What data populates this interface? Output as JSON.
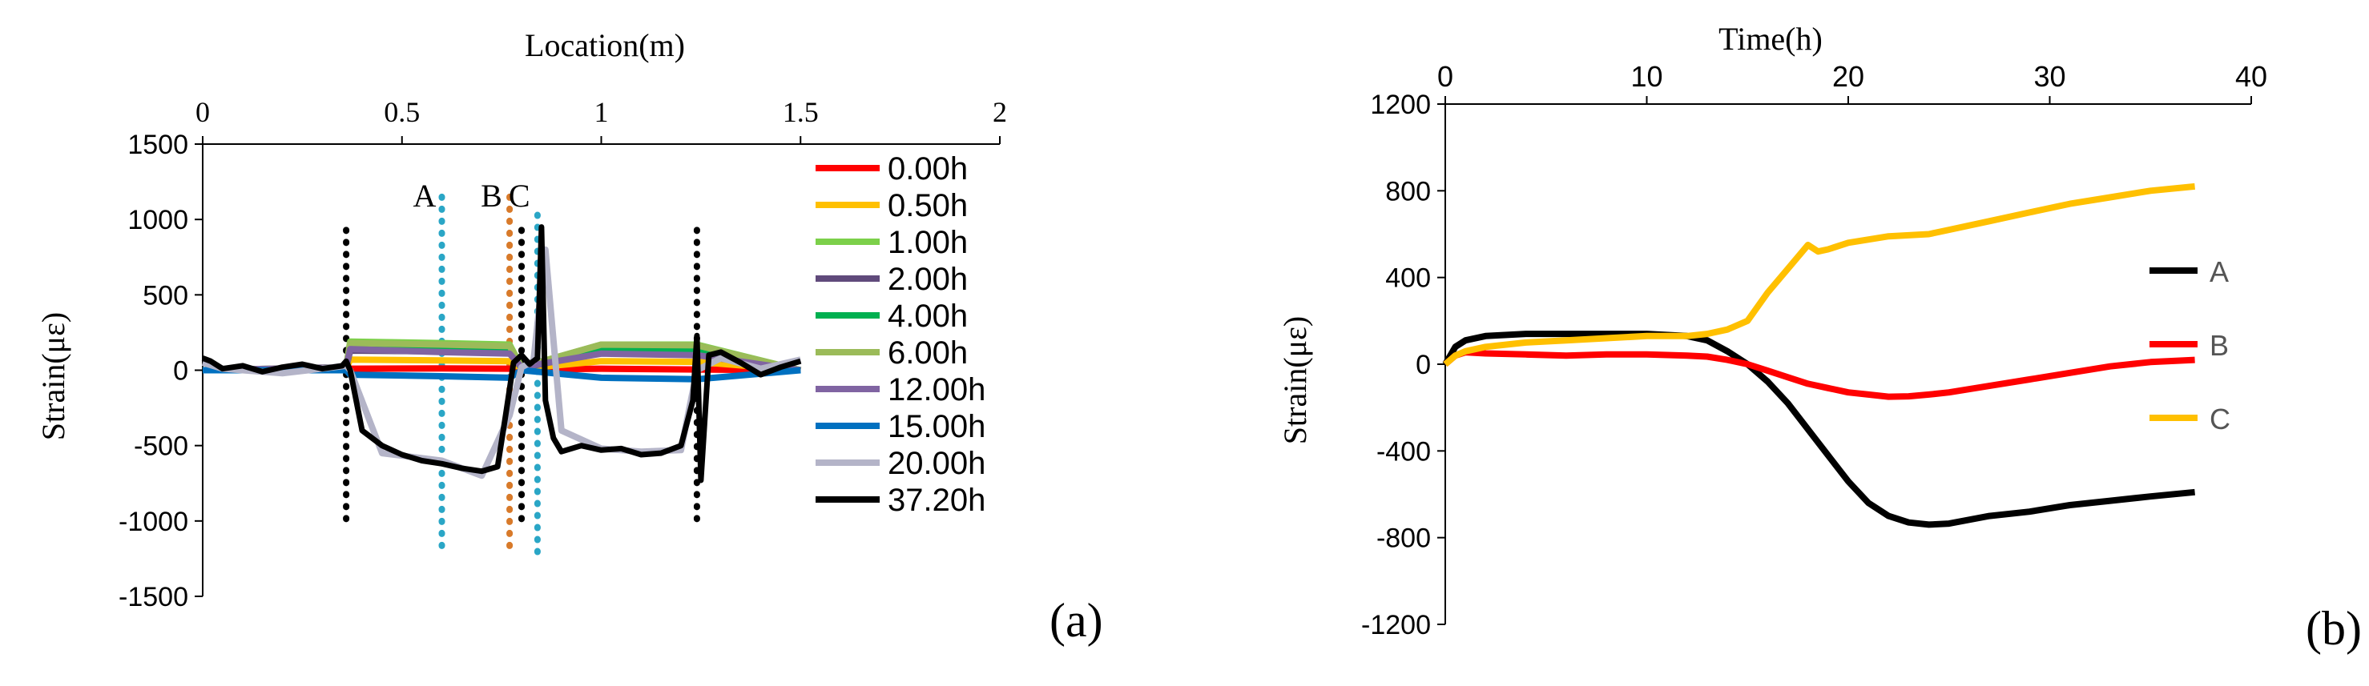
{
  "chart_data": [
    {
      "panel": "(a)",
      "type": "line",
      "title": "Location(m)",
      "xlabel": "Location(m)",
      "ylabel": "Strain(με)",
      "xlim": [
        0,
        2
      ],
      "ylim": [
        -1500,
        1500
      ],
      "xticks": [
        "0",
        "0.5",
        "1",
        "1.5",
        "2"
      ],
      "yticks": [
        "1500",
        "1000",
        "500",
        "0",
        "-500",
        "-1000",
        "-1500"
      ],
      "legend_position": "right",
      "markers": [
        {
          "label": "A",
          "x": 0.6,
          "color": "#2aa6c6",
          "y_range": [
            -1230,
            1150
          ]
        },
        {
          "label": "B",
          "x": 0.77,
          "color": "#d87a2a",
          "y_range": [
            -1230,
            1150
          ]
        },
        {
          "label": "C",
          "x": 0.84,
          "color": "#2aa6c6",
          "y_range": [
            -1230,
            1030
          ]
        }
      ],
      "boundaries": [
        {
          "x": 0.36,
          "y_range": [
            -1000,
            930
          ]
        },
        {
          "x": 0.8,
          "y_range": [
            -1000,
            930
          ]
        },
        {
          "x": 1.24,
          "y_range": [
            -1000,
            930
          ]
        }
      ],
      "series": [
        {
          "name": "0.00h",
          "color": "#ff0000",
          "x": [
            0,
            0.36,
            0.37,
            0.6,
            0.77,
            0.8,
            1.0,
            1.24,
            1.5
          ],
          "values": [
            0,
            0,
            10,
            12,
            10,
            5,
            10,
            5,
            0
          ]
        },
        {
          "name": "0.50h",
          "color": "#ffc000",
          "x": [
            0,
            0.36,
            0.37,
            0.6,
            0.77,
            0.8,
            1.0,
            1.24,
            1.5
          ],
          "values": [
            0,
            10,
            70,
            65,
            60,
            10,
            60,
            55,
            0
          ]
        },
        {
          "name": "1.00h",
          "color": "#7cd04a",
          "x": [
            0,
            0.36,
            0.37,
            0.6,
            0.77,
            0.8,
            1.0,
            1.24,
            1.5
          ],
          "values": [
            0,
            20,
            190,
            180,
            170,
            20,
            170,
            170,
            0
          ]
        },
        {
          "name": "2.00h",
          "color": "#604a7b",
          "x": [
            0,
            0.36,
            0.37,
            0.6,
            0.77,
            0.8,
            1.0,
            1.24,
            1.5
          ],
          "values": [
            0,
            15,
            130,
            125,
            120,
            15,
            120,
            120,
            0
          ]
        },
        {
          "name": "4.00h",
          "color": "#00b050",
          "x": [
            0,
            0.36,
            0.37,
            0.6,
            0.77,
            0.8,
            1.0,
            1.24,
            1.5
          ],
          "values": [
            0,
            15,
            150,
            140,
            135,
            15,
            140,
            140,
            0
          ]
        },
        {
          "name": "6.00h",
          "color": "#9bbb59",
          "x": [
            0,
            0.36,
            0.37,
            0.6,
            0.77,
            0.8,
            1.0,
            1.24,
            1.5
          ],
          "values": [
            0,
            20,
            180,
            170,
            160,
            20,
            170,
            165,
            0
          ]
        },
        {
          "name": "12.00h",
          "color": "#8064a2",
          "x": [
            0,
            0.36,
            0.37,
            0.6,
            0.77,
            0.8,
            1.0,
            1.24,
            1.5
          ],
          "values": [
            0,
            20,
            140,
            120,
            110,
            20,
            110,
            100,
            0
          ]
        },
        {
          "name": "15.00h",
          "color": "#0070c0",
          "x": [
            0,
            0.36,
            0.37,
            0.6,
            0.77,
            0.8,
            1.0,
            1.24,
            1.5
          ],
          "values": [
            0,
            0,
            -30,
            -40,
            -50,
            0,
            -50,
            -60,
            0
          ]
        },
        {
          "name": "20.00h",
          "color": "#b4b4c8",
          "x": [
            0,
            0.05,
            0.2,
            0.36,
            0.37,
            0.45,
            0.6,
            0.7,
            0.77,
            0.8,
            0.83,
            0.86,
            0.9,
            1.0,
            1.1,
            1.2,
            1.24,
            1.3,
            1.4,
            1.5
          ],
          "values": [
            50,
            10,
            -20,
            30,
            0,
            -550,
            -600,
            -700,
            -300,
            20,
            60,
            800,
            -400,
            -520,
            -540,
            -530,
            0,
            80,
            10,
            70
          ]
        },
        {
          "name": "37.20h",
          "color": "#000000",
          "x": [
            0,
            0.02,
            0.05,
            0.1,
            0.15,
            0.2,
            0.25,
            0.3,
            0.35,
            0.36,
            0.37,
            0.4,
            0.45,
            0.5,
            0.55,
            0.6,
            0.65,
            0.7,
            0.74,
            0.76,
            0.78,
            0.8,
            0.82,
            0.84,
            0.85,
            0.86,
            0.88,
            0.9,
            0.95,
            1.0,
            1.05,
            1.1,
            1.15,
            1.2,
            1.23,
            1.24,
            1.25,
            1.27,
            1.3,
            1.35,
            1.4,
            1.45,
            1.5
          ],
          "values": [
            80,
            60,
            10,
            30,
            -10,
            20,
            40,
            10,
            30,
            60,
            0,
            -400,
            -500,
            -560,
            -600,
            -620,
            -650,
            -670,
            -640,
            -300,
            50,
            100,
            40,
            80,
            950,
            -200,
            -450,
            -540,
            -500,
            -530,
            -520,
            -560,
            -550,
            -500,
            -200,
            230,
            -730,
            100,
            120,
            50,
            -30,
            20,
            60
          ]
        }
      ]
    },
    {
      "panel": "(b)",
      "type": "line",
      "title": "Time(h)",
      "xlabel": "Time(h)",
      "ylabel": "Strain(με)",
      "xlim": [
        0,
        40
      ],
      "ylim": [
        -1200,
        1200
      ],
      "xticks": [
        "0",
        "10",
        "20",
        "30",
        "40"
      ],
      "yticks": [
        "1200",
        "800",
        "400",
        "0",
        "-400",
        "-800",
        "-1200"
      ],
      "legend_position": "right",
      "series": [
        {
          "name": "A",
          "color": "#000000",
          "x": [
            0,
            0.5,
            1,
            2,
            4,
            6,
            8,
            10,
            12,
            13,
            14,
            15,
            16,
            17,
            18,
            19,
            20,
            21,
            22,
            23,
            24,
            25,
            27,
            29,
            31,
            33,
            35,
            37.2
          ],
          "values": [
            0,
            80,
            110,
            130,
            140,
            140,
            140,
            140,
            130,
            110,
            60,
            0,
            -80,
            -180,
            -300,
            -420,
            -540,
            -640,
            -700,
            -730,
            -740,
            -735,
            -700,
            -680,
            -650,
            -630,
            -610,
            -590
          ]
        },
        {
          "name": "B",
          "color": "#ff0000",
          "x": [
            0,
            0.5,
            1,
            2,
            4,
            6,
            8,
            10,
            12,
            13,
            14,
            15,
            16,
            17,
            18,
            19,
            20,
            21,
            22,
            23,
            24,
            25,
            27,
            29,
            31,
            33,
            35,
            37.2
          ],
          "values": [
            0,
            40,
            55,
            50,
            45,
            40,
            45,
            45,
            40,
            35,
            20,
            0,
            -30,
            -60,
            -90,
            -110,
            -130,
            -140,
            -150,
            -148,
            -140,
            -130,
            -100,
            -70,
            -40,
            -10,
            10,
            20
          ]
        },
        {
          "name": "C",
          "color": "#ffc000",
          "x": [
            0,
            0.5,
            1,
            2,
            4,
            6,
            8,
            10,
            12,
            13,
            14,
            15,
            16,
            17,
            18,
            18.5,
            19,
            20,
            22,
            24,
            25,
            27,
            29,
            31,
            33,
            35,
            37.2
          ],
          "values": [
            0,
            40,
            60,
            80,
            100,
            110,
            120,
            130,
            130,
            140,
            160,
            200,
            330,
            440,
            550,
            520,
            530,
            560,
            590,
            600,
            620,
            660,
            700,
            740,
            770,
            800,
            820
          ]
        }
      ]
    }
  ],
  "panel_labels": {
    "a": "(a)",
    "b": "(b)"
  }
}
